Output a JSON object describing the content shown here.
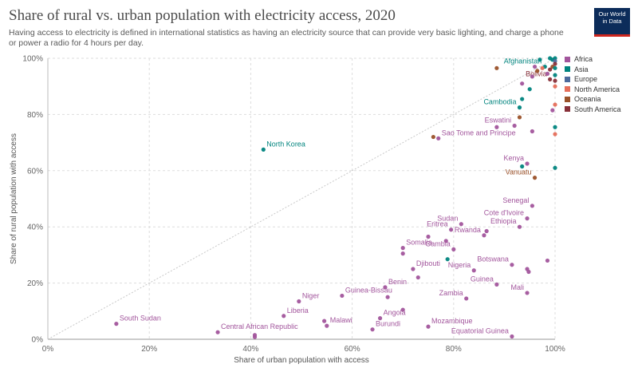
{
  "title": "Share of rural vs. urban population with electricity access, 2020",
  "subtitle": "Having access to electricity is defined in international statistics as having an electricity source that can provide very basic lighting, and charge a phone or power a radio for 4 hours per day.",
  "logo": {
    "line1": "Our World",
    "line2": "in Data"
  },
  "colors": {
    "Africa": "#a2559c",
    "Asia": "#00847e",
    "Europe": "#4c6a9c",
    "North America": "#e56e5a",
    "Oceania": "#9a5129",
    "South America": "#883039",
    "diagonal": "#c8c8c8",
    "grid": "#dddddd"
  },
  "chart_data": {
    "type": "scatter",
    "title": "Share of rural vs. urban population with electricity access, 2020",
    "xlabel": "Share of urban population with access",
    "ylabel": "Share of rural population with access",
    "xlim": [
      0,
      100
    ],
    "ylim": [
      0,
      100
    ],
    "x_ticks": [
      "0%",
      "20%",
      "40%",
      "60%",
      "80%",
      "100%"
    ],
    "y_ticks": [
      "0%",
      "20%",
      "40%",
      "60%",
      "80%",
      "100%"
    ],
    "grid": true,
    "reference_line": "y = x",
    "legend_position": "right",
    "legend": [
      "Africa",
      "Asia",
      "Europe",
      "North America",
      "Oceania",
      "South America"
    ],
    "points": [
      {
        "label": "South Sudan",
        "x": 13.5,
        "y": 5.5,
        "region": "Africa"
      },
      {
        "label": "Central African Republic",
        "x": 33.5,
        "y": 2.5,
        "region": "Africa"
      },
      {
        "label": "",
        "x": 40.8,
        "y": 1.5,
        "region": "Africa"
      },
      {
        "label": "",
        "x": 40.8,
        "y": 0.8,
        "region": "Africa"
      },
      {
        "label": "Liberia",
        "x": 46.5,
        "y": 8.3,
        "region": "Africa"
      },
      {
        "label": "Niger",
        "x": 49.5,
        "y": 13.5,
        "region": "Africa"
      },
      {
        "label": "Malawi",
        "x": 55,
        "y": 4.8,
        "region": "Africa"
      },
      {
        "label": "",
        "x": 54.5,
        "y": 6.5,
        "region": "Africa"
      },
      {
        "label": "Guinea-Bissau",
        "x": 58,
        "y": 15.5,
        "region": "Africa"
      },
      {
        "label": "Benin",
        "x": 66.5,
        "y": 18.5,
        "region": "Africa"
      },
      {
        "label": "",
        "x": 67,
        "y": 15,
        "region": "Africa"
      },
      {
        "label": "Angola",
        "x": 65.5,
        "y": 7.5,
        "region": "Africa"
      },
      {
        "label": "Burundi",
        "x": 64,
        "y": 3.5,
        "region": "Africa"
      },
      {
        "label": "",
        "x": 70,
        "y": 10.5,
        "region": "Africa"
      },
      {
        "label": "Somalia",
        "x": 70,
        "y": 32.5,
        "region": "Africa"
      },
      {
        "label": "",
        "x": 70,
        "y": 30.5,
        "region": "Africa"
      },
      {
        "label": "",
        "x": 75,
        "y": 36.5,
        "region": "Africa"
      },
      {
        "label": "Djibouti",
        "x": 72,
        "y": 25,
        "region": "Africa"
      },
      {
        "label": "",
        "x": 73,
        "y": 22,
        "region": "Africa"
      },
      {
        "label": "",
        "x": 78.5,
        "y": 35,
        "region": "Africa"
      },
      {
        "label": "",
        "x": 78.8,
        "y": 28.5,
        "region": "Asia"
      },
      {
        "label": "Eritrea",
        "x": 79.5,
        "y": 39,
        "region": "Africa"
      },
      {
        "label": "Gambia",
        "x": 80,
        "y": 32,
        "region": "Africa"
      },
      {
        "label": "Sudan",
        "x": 81.5,
        "y": 41,
        "region": "Africa"
      },
      {
        "label": "Mozambique",
        "x": 75,
        "y": 4.5,
        "region": "Africa"
      },
      {
        "label": "Zambia",
        "x": 82.5,
        "y": 14.5,
        "region": "Africa"
      },
      {
        "label": "Rwanda",
        "x": 86,
        "y": 37,
        "region": "Africa"
      },
      {
        "label": "",
        "x": 86.5,
        "y": 38.5,
        "region": "Africa"
      },
      {
        "label": "Nigeria",
        "x": 84,
        "y": 24.5,
        "region": "Africa"
      },
      {
        "label": "Equatorial Guinea",
        "x": 91.5,
        "y": 1,
        "region": "Africa"
      },
      {
        "label": "Guinea",
        "x": 88.5,
        "y": 19.5,
        "region": "Africa"
      },
      {
        "label": "Botswana",
        "x": 91.5,
        "y": 26.5,
        "region": "Africa"
      },
      {
        "label": "Cote d'Ivoire",
        "x": 94.5,
        "y": 43,
        "region": "Africa"
      },
      {
        "label": "Ethiopia",
        "x": 93,
        "y": 40,
        "region": "Africa"
      },
      {
        "label": "Senegal",
        "x": 95.5,
        "y": 47.5,
        "region": "Africa"
      },
      {
        "label": "Mali",
        "x": 94.5,
        "y": 16.5,
        "region": "Africa"
      },
      {
        "label": "",
        "x": 94.5,
        "y": 25,
        "region": "Africa"
      },
      {
        "label": "",
        "x": 94.8,
        "y": 24,
        "region": "Africa"
      },
      {
        "label": "",
        "x": 98.5,
        "y": 28,
        "region": "Africa"
      },
      {
        "label": "Kenya",
        "x": 94.5,
        "y": 62.5,
        "region": "Africa"
      },
      {
        "label": "",
        "x": 93.5,
        "y": 61.5,
        "region": "Asia"
      },
      {
        "label": "Vanuatu",
        "x": 96,
        "y": 57.5,
        "region": "Oceania"
      },
      {
        "label": "",
        "x": 100,
        "y": 61,
        "region": "Asia"
      },
      {
        "label": "Sao Tome and Principe",
        "x": 77,
        "y": 71.5,
        "region": "Africa"
      },
      {
        "label": "",
        "x": 76,
        "y": 72,
        "region": "Oceania"
      },
      {
        "label": "Eswatini",
        "x": 92,
        "y": 76,
        "region": "Africa"
      },
      {
        "label": "",
        "x": 88.5,
        "y": 75.5,
        "region": "Africa"
      },
      {
        "label": "",
        "x": 95.5,
        "y": 74,
        "region": "Africa"
      },
      {
        "label": "",
        "x": 93,
        "y": 79,
        "region": "Oceania"
      },
      {
        "label": "",
        "x": 100,
        "y": 75.5,
        "region": "Asia"
      },
      {
        "label": "",
        "x": 100,
        "y": 73,
        "region": "North America"
      },
      {
        "label": "North Korea",
        "x": 42.5,
        "y": 67.5,
        "region": "Asia"
      },
      {
        "label": "Cambodia",
        "x": 93,
        "y": 82.5,
        "region": "Asia"
      },
      {
        "label": "",
        "x": 93.5,
        "y": 85.5,
        "region": "Asia"
      },
      {
        "label": "",
        "x": 99.5,
        "y": 81.5,
        "region": "Africa"
      },
      {
        "label": "",
        "x": 100,
        "y": 83.5,
        "region": "North America"
      },
      {
        "label": "Bolivia",
        "x": 99,
        "y": 92.5,
        "region": "South America"
      },
      {
        "label": "",
        "x": 95,
        "y": 89,
        "region": "Asia"
      },
      {
        "label": "",
        "x": 95.5,
        "y": 93.5,
        "region": "Africa"
      },
      {
        "label": "",
        "x": 88.5,
        "y": 96.5,
        "region": "Oceania"
      },
      {
        "label": "",
        "x": 93.5,
        "y": 91,
        "region": "Africa"
      },
      {
        "label": "",
        "x": 100,
        "y": 92,
        "region": "South America"
      },
      {
        "label": "Afghanistan",
        "x": 98,
        "y": 97,
        "region": "Asia"
      },
      {
        "label": "",
        "x": 97,
        "y": 99.5,
        "region": "Asia"
      },
      {
        "label": "",
        "x": 99,
        "y": 100,
        "region": "Asia"
      },
      {
        "label": "",
        "x": 99.5,
        "y": 99.5,
        "region": "Asia"
      },
      {
        "label": "",
        "x": 100,
        "y": 100,
        "region": "Asia"
      },
      {
        "label": "",
        "x": 100,
        "y": 99,
        "region": "Europe"
      },
      {
        "label": "",
        "x": 100,
        "y": 98,
        "region": "South America"
      },
      {
        "label": "",
        "x": 99.5,
        "y": 97,
        "region": "Oceania"
      },
      {
        "label": "",
        "x": 99,
        "y": 96,
        "region": "South America"
      },
      {
        "label": "",
        "x": 100,
        "y": 96.5,
        "region": "Asia"
      },
      {
        "label": "",
        "x": 98.5,
        "y": 94.5,
        "region": "Africa"
      },
      {
        "label": "",
        "x": 100,
        "y": 94,
        "region": "Asia"
      },
      {
        "label": "",
        "x": 97.5,
        "y": 96.5,
        "region": "North America"
      },
      {
        "label": "",
        "x": 96.5,
        "y": 95.5,
        "region": "Oceania"
      },
      {
        "label": "",
        "x": 100,
        "y": 90,
        "region": "North America"
      },
      {
        "label": "",
        "x": 96,
        "y": 97,
        "region": "Africa"
      }
    ]
  }
}
